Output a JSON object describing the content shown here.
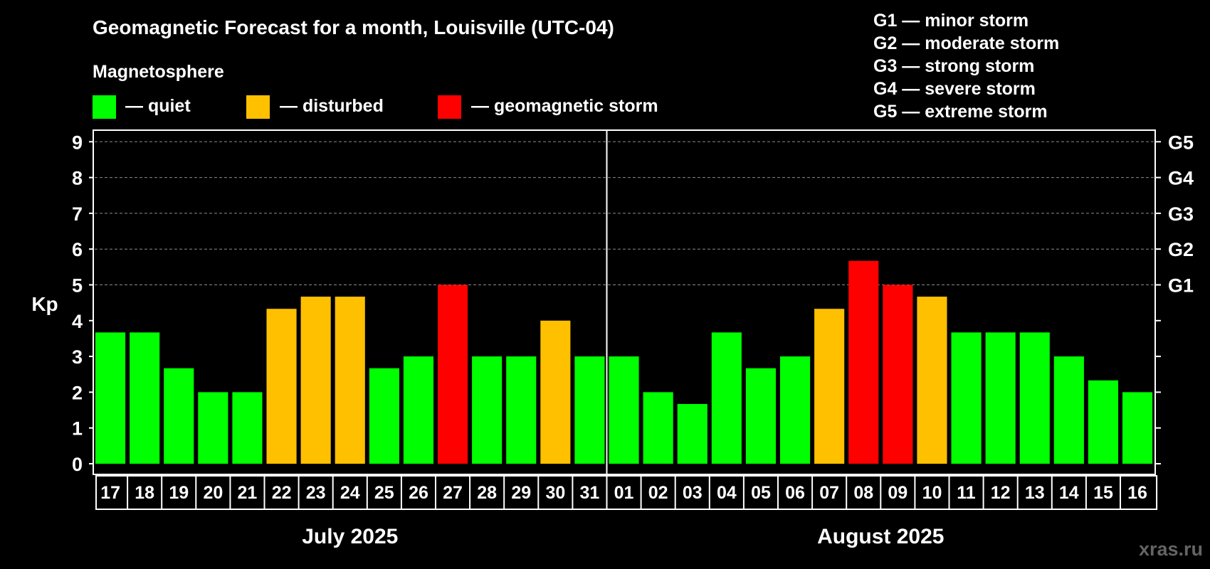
{
  "title": "Geomagnetic Forecast for a month, Louisville (UTC-04)",
  "legend": {
    "heading": "Magnetosphere",
    "items": [
      {
        "label": "— quiet",
        "color": "#00ff00"
      },
      {
        "label": "— disturbed",
        "color": "#ffc000"
      },
      {
        "label": "— geomagnetic storm",
        "color": "#ff0000"
      }
    ]
  },
  "storm_scale": [
    "G1 — minor storm",
    "G2 — moderate storm",
    "G3 — strong storm",
    "G4 — severe storm",
    "G5 — extreme storm"
  ],
  "watermark": "xras.ru",
  "chart_data": {
    "type": "bar",
    "ylabel": "Kp",
    "ylim": [
      0,
      9
    ],
    "y_ticks": [
      "0",
      "1",
      "2",
      "3",
      "4",
      "5",
      "6",
      "7",
      "8",
      "9"
    ],
    "right_axis_labels": [
      {
        "kp": 5,
        "label": "G1"
      },
      {
        "kp": 6,
        "label": "G2"
      },
      {
        "kp": 7,
        "label": "G3"
      },
      {
        "kp": 8,
        "label": "G4"
      },
      {
        "kp": 9,
        "label": "G5"
      }
    ],
    "grid": "dashed horizontal at Kp 5-9",
    "categories": [
      "17",
      "18",
      "19",
      "20",
      "21",
      "22",
      "23",
      "24",
      "25",
      "26",
      "27",
      "28",
      "29",
      "30",
      "31",
      "01",
      "02",
      "03",
      "04",
      "05",
      "06",
      "07",
      "08",
      "09",
      "10",
      "11",
      "12",
      "13",
      "14",
      "15",
      "16"
    ],
    "values": [
      3.67,
      3.67,
      2.67,
      2.0,
      2.0,
      4.33,
      4.67,
      4.67,
      2.67,
      3.0,
      5.0,
      3.0,
      3.0,
      4.0,
      3.0,
      3.0,
      2.0,
      1.67,
      3.67,
      2.67,
      3.0,
      4.33,
      5.67,
      5.0,
      4.67,
      3.67,
      3.67,
      3.67,
      3.0,
      2.33,
      2.0
    ],
    "levels": [
      "quiet",
      "quiet",
      "quiet",
      "quiet",
      "quiet",
      "disturbed",
      "disturbed",
      "disturbed",
      "quiet",
      "quiet",
      "storm",
      "quiet",
      "quiet",
      "disturbed",
      "quiet",
      "quiet",
      "quiet",
      "quiet",
      "quiet",
      "quiet",
      "quiet",
      "disturbed",
      "storm",
      "storm",
      "disturbed",
      "quiet",
      "quiet",
      "quiet",
      "quiet",
      "quiet",
      "quiet"
    ],
    "level_colors": {
      "quiet": "#00ff00",
      "disturbed": "#ffc000",
      "storm": "#ff0000"
    },
    "months": [
      {
        "label": "July 2025",
        "first_index": 0,
        "last_index": 14
      },
      {
        "label": "August 2025",
        "first_index": 15,
        "last_index": 30
      }
    ]
  }
}
